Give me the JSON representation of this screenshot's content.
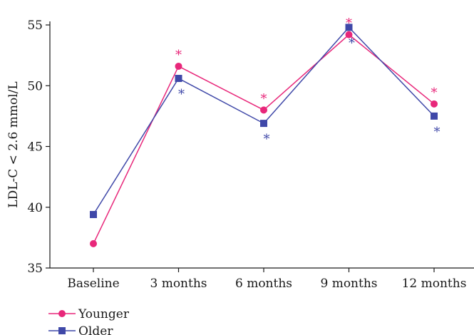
{
  "chart_data": {
    "type": "line",
    "categories": [
      "Baseline",
      "3 months",
      "6 months",
      "9 months",
      "12 months"
    ],
    "ylabel": "LDL-C < 2.6 mmol/L",
    "ylim": [
      35,
      55
    ],
    "yticks": [
      35,
      40,
      45,
      50,
      55
    ],
    "grid": false,
    "legend": "bottom-left",
    "series": [
      {
        "name": "Younger",
        "color": "#e8277a",
        "marker": "circle",
        "values": [
          37.0,
          51.6,
          48.0,
          54.2,
          48.5
        ],
        "significance": [
          "",
          "*",
          "*",
          "*",
          "*"
        ]
      },
      {
        "name": "Older",
        "color": "#3f48a8",
        "marker": "square",
        "values": [
          39.4,
          50.6,
          46.9,
          54.8,
          47.5
        ],
        "significance": [
          "",
          "*",
          "*",
          "*",
          "*"
        ]
      }
    ]
  }
}
